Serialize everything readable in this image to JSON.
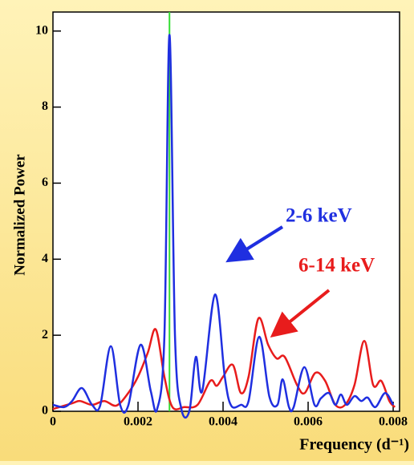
{
  "chart_data": {
    "type": "line",
    "x_label": "Frequency (d⁻¹)",
    "y_label": "Normalized Power",
    "xlim": [
      0,
      0.00815
    ],
    "ylim": [
      0,
      10.5
    ],
    "xticks": [
      0,
      0.002,
      0.004,
      0.006,
      0.008
    ],
    "yticks": [
      0,
      2,
      4,
      6,
      8,
      10
    ],
    "vline": 0.00274,
    "vline_color": "#33dd33",
    "series": [
      {
        "name": "2-6 keV",
        "color": "#1f2fe0",
        "x": [
          0,
          0.00026,
          0.00045,
          0.00068,
          0.00092,
          0.00111,
          0.00136,
          0.00158,
          0.00177,
          0.00206,
          0.0023,
          0.00245,
          0.00262,
          0.00274,
          0.00287,
          0.00302,
          0.00321,
          0.00336,
          0.00351,
          0.00381,
          0.00404,
          0.00419,
          0.00442,
          0.0046,
          0.00485,
          0.00509,
          0.00528,
          0.0054,
          0.00555,
          0.00566,
          0.00591,
          0.00615,
          0.0063,
          0.00649,
          0.00664,
          0.00677,
          0.00691,
          0.00709,
          0.00725,
          0.0074,
          0.00758,
          0.00781,
          0.008
        ],
        "values": [
          0.17,
          0.11,
          0.27,
          0.61,
          0.17,
          0.15,
          1.71,
          0.17,
          0.15,
          1.75,
          0.53,
          0.06,
          1.96,
          9.9,
          1.96,
          0.06,
          0.02,
          1.43,
          0.53,
          3.07,
          0.91,
          0.15,
          0.17,
          0.27,
          1.96,
          0.38,
          0.17,
          0.84,
          0.11,
          0.11,
          1.16,
          0.17,
          0.34,
          0.48,
          0.17,
          0.44,
          0.17,
          0.4,
          0.27,
          0.36,
          0.11,
          0.48,
          0.17
        ]
      },
      {
        "name": "6-14 keV",
        "color": "#e81c1c",
        "x": [
          0,
          0.00045,
          0.00064,
          0.00092,
          0.00121,
          0.00149,
          0.00177,
          0.002,
          0.00223,
          0.00242,
          0.00262,
          0.00281,
          0.00309,
          0.0034,
          0.0037,
          0.00385,
          0.004,
          0.00423,
          0.00442,
          0.0046,
          0.00483,
          0.00506,
          0.00526,
          0.00545,
          0.00574,
          0.00592,
          0.00617,
          0.0064,
          0.00664,
          0.00687,
          0.00709,
          0.00732,
          0.00753,
          0.00772,
          0.00791,
          0.00804
        ],
        "values": [
          0.06,
          0.21,
          0.27,
          0.17,
          0.27,
          0.15,
          0.48,
          0.91,
          1.54,
          2.15,
          0.91,
          0.11,
          0.11,
          0.17,
          0.8,
          0.67,
          0.91,
          1.22,
          0.48,
          0.91,
          2.44,
          1.75,
          1.39,
          1.43,
          0.69,
          0.48,
          1.01,
          0.8,
          0.17,
          0.17,
          0.69,
          1.85,
          0.69,
          0.8,
          0.27,
          0.11
        ]
      }
    ]
  }
}
